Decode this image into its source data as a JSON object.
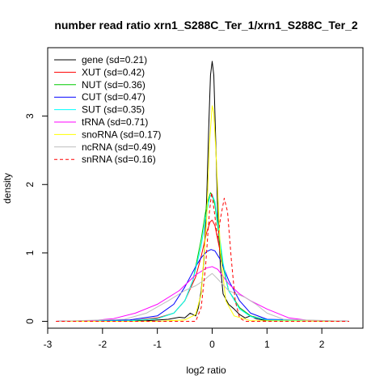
{
  "chart_data": {
    "type": "line",
    "title": "number read ratio xrn1_S288C_Ter_1/xrn1_S288C_Ter_2",
    "xlabel": "log2 ratio",
    "ylabel": "density",
    "xlim": [
      -3.0,
      2.75
    ],
    "ylim": [
      -0.1,
      4.0
    ],
    "x_ticks": [
      -3,
      -2,
      -1,
      0,
      1,
      2
    ],
    "y_ticks": [
      0,
      1,
      2,
      3
    ],
    "grid": false,
    "legend_position": "top-left",
    "series": [
      {
        "name": "gene (sd=0.21)",
        "color": "#000000",
        "dash": false,
        "points": [
          [
            -2.85,
            0
          ],
          [
            -1.2,
            0.01
          ],
          [
            -0.8,
            0.03
          ],
          [
            -0.6,
            0.06
          ],
          [
            -0.5,
            0.05
          ],
          [
            -0.4,
            0.12
          ],
          [
            -0.3,
            0.08
          ],
          [
            -0.25,
            0.2
          ],
          [
            -0.2,
            0.45
          ],
          [
            -0.15,
            0.9
          ],
          [
            -0.1,
            1.8
          ],
          [
            -0.06,
            2.9
          ],
          [
            -0.03,
            3.6
          ],
          [
            0.0,
            3.8
          ],
          [
            0.03,
            3.6
          ],
          [
            0.06,
            2.8
          ],
          [
            0.1,
            1.6
          ],
          [
            0.15,
            0.8
          ],
          [
            0.2,
            0.4
          ],
          [
            0.3,
            0.25
          ],
          [
            0.4,
            0.18
          ],
          [
            0.5,
            0.1
          ],
          [
            0.6,
            0.05
          ],
          [
            0.7,
            0.08
          ],
          [
            0.8,
            0.04
          ],
          [
            1.0,
            0.01
          ],
          [
            2.5,
            0
          ]
        ]
      },
      {
        "name": "XUT (sd=0.42)",
        "color": "#ff0000",
        "dash": false,
        "points": [
          [
            -2.85,
            0
          ],
          [
            -1.5,
            0.01
          ],
          [
            -1.0,
            0.05
          ],
          [
            -0.7,
            0.12
          ],
          [
            -0.5,
            0.3
          ],
          [
            -0.3,
            0.65
          ],
          [
            -0.2,
            0.95
          ],
          [
            -0.1,
            1.3
          ],
          [
            -0.04,
            1.45
          ],
          [
            0.0,
            1.48
          ],
          [
            0.05,
            1.4
          ],
          [
            0.1,
            1.2
          ],
          [
            0.2,
            0.8
          ],
          [
            0.3,
            0.45
          ],
          [
            0.5,
            0.2
          ],
          [
            0.7,
            0.08
          ],
          [
            1.0,
            0.02
          ],
          [
            2.5,
            0
          ]
        ]
      },
      {
        "name": "NUT (sd=0.36)",
        "color": "#00cc00",
        "dash": false,
        "points": [
          [
            -2.85,
            0
          ],
          [
            -1.5,
            0.01
          ],
          [
            -1.0,
            0.04
          ],
          [
            -0.7,
            0.12
          ],
          [
            -0.5,
            0.3
          ],
          [
            -0.35,
            0.6
          ],
          [
            -0.2,
            1.2
          ],
          [
            -0.1,
            1.7
          ],
          [
            -0.03,
            1.88
          ],
          [
            0.0,
            1.85
          ],
          [
            0.05,
            1.7
          ],
          [
            0.1,
            1.4
          ],
          [
            0.2,
            0.8
          ],
          [
            0.3,
            0.45
          ],
          [
            0.5,
            0.2
          ],
          [
            0.7,
            0.08
          ],
          [
            1.0,
            0.02
          ],
          [
            2.5,
            0
          ]
        ]
      },
      {
        "name": "CUT (sd=0.47)",
        "color": "#0000ff",
        "dash": false,
        "points": [
          [
            -2.85,
            0
          ],
          [
            -1.5,
            0.02
          ],
          [
            -1.0,
            0.08
          ],
          [
            -0.7,
            0.25
          ],
          [
            -0.5,
            0.5
          ],
          [
            -0.3,
            0.8
          ],
          [
            -0.2,
            0.93
          ],
          [
            -0.1,
            1.02
          ],
          [
            -0.02,
            1.05
          ],
          [
            0.05,
            1.03
          ],
          [
            0.15,
            0.9
          ],
          [
            0.3,
            0.6
          ],
          [
            0.5,
            0.3
          ],
          [
            0.7,
            0.12
          ],
          [
            1.0,
            0.03
          ],
          [
            2.5,
            0
          ]
        ]
      },
      {
        "name": "SUT (sd=0.35)",
        "color": "#00ffff",
        "dash": false,
        "points": [
          [
            -2.85,
            0
          ],
          [
            -1.5,
            0.01
          ],
          [
            -1.0,
            0.04
          ],
          [
            -0.7,
            0.12
          ],
          [
            -0.5,
            0.3
          ],
          [
            -0.35,
            0.6
          ],
          [
            -0.2,
            1.1
          ],
          [
            -0.1,
            1.6
          ],
          [
            -0.04,
            1.83
          ],
          [
            0.0,
            1.85
          ],
          [
            0.05,
            1.75
          ],
          [
            0.1,
            1.45
          ],
          [
            0.2,
            0.85
          ],
          [
            0.3,
            0.45
          ],
          [
            0.5,
            0.18
          ],
          [
            0.7,
            0.07
          ],
          [
            1.0,
            0.02
          ],
          [
            2.5,
            0
          ]
        ]
      },
      {
        "name": "tRNA (sd=0.71)",
        "color": "#ff00ff",
        "dash": false,
        "points": [
          [
            -2.85,
            0
          ],
          [
            -2.2,
            0.01
          ],
          [
            -1.8,
            0.04
          ],
          [
            -1.4,
            0.12
          ],
          [
            -1.0,
            0.25
          ],
          [
            -0.6,
            0.45
          ],
          [
            -0.3,
            0.68
          ],
          [
            -0.1,
            0.78
          ],
          [
            0.0,
            0.8
          ],
          [
            0.1,
            0.76
          ],
          [
            0.3,
            0.55
          ],
          [
            0.5,
            0.4
          ],
          [
            0.7,
            0.3
          ],
          [
            1.0,
            0.18
          ],
          [
            1.4,
            0.05
          ],
          [
            1.8,
            0.01
          ],
          [
            2.5,
            0
          ]
        ]
      },
      {
        "name": "snoRNA (sd=0.17)",
        "color": "#ffff00",
        "dash": false,
        "points": [
          [
            -2.85,
            0
          ],
          [
            -1.0,
            0.0
          ],
          [
            -0.5,
            0.02
          ],
          [
            -0.3,
            0.1
          ],
          [
            -0.2,
            0.4
          ],
          [
            -0.1,
            1.5
          ],
          [
            -0.05,
            2.6
          ],
          [
            0.0,
            3.15
          ],
          [
            0.03,
            3.05
          ],
          [
            0.08,
            2.3
          ],
          [
            0.15,
            1.0
          ],
          [
            0.25,
            0.3
          ],
          [
            0.4,
            0.08
          ],
          [
            0.7,
            0.01
          ],
          [
            2.5,
            0
          ]
        ]
      },
      {
        "name": "ncRNA (sd=0.49)",
        "color": "#bebebe",
        "dash": false,
        "points": [
          [
            -2.85,
            0
          ],
          [
            -1.6,
            0.03
          ],
          [
            -1.2,
            0.12
          ],
          [
            -0.8,
            0.3
          ],
          [
            -0.5,
            0.45
          ],
          [
            -0.3,
            0.52
          ],
          [
            -0.15,
            0.6
          ],
          [
            -0.05,
            0.67
          ],
          [
            0.0,
            0.7
          ],
          [
            0.1,
            0.62
          ],
          [
            0.3,
            0.45
          ],
          [
            0.6,
            0.35
          ],
          [
            0.8,
            0.25
          ],
          [
            1.0,
            0.12
          ],
          [
            1.3,
            0.03
          ],
          [
            2.5,
            0
          ]
        ]
      },
      {
        "name": "snRNA (sd=0.16)",
        "color": "#ff0000",
        "dash": true,
        "points": [
          [
            -2.85,
            0
          ],
          [
            -0.3,
            0.0
          ],
          [
            -0.2,
            0.2
          ],
          [
            -0.12,
            0.8
          ],
          [
            -0.05,
            1.6
          ],
          [
            -0.01,
            1.88
          ],
          [
            0.04,
            1.6
          ],
          [
            0.1,
            1.2
          ],
          [
            0.15,
            1.5
          ],
          [
            0.22,
            1.8
          ],
          [
            0.28,
            1.6
          ],
          [
            0.35,
            0.9
          ],
          [
            0.42,
            0.3
          ],
          [
            0.5,
            0.05
          ],
          [
            0.6,
            0.0
          ],
          [
            2.5,
            0
          ]
        ]
      }
    ]
  }
}
